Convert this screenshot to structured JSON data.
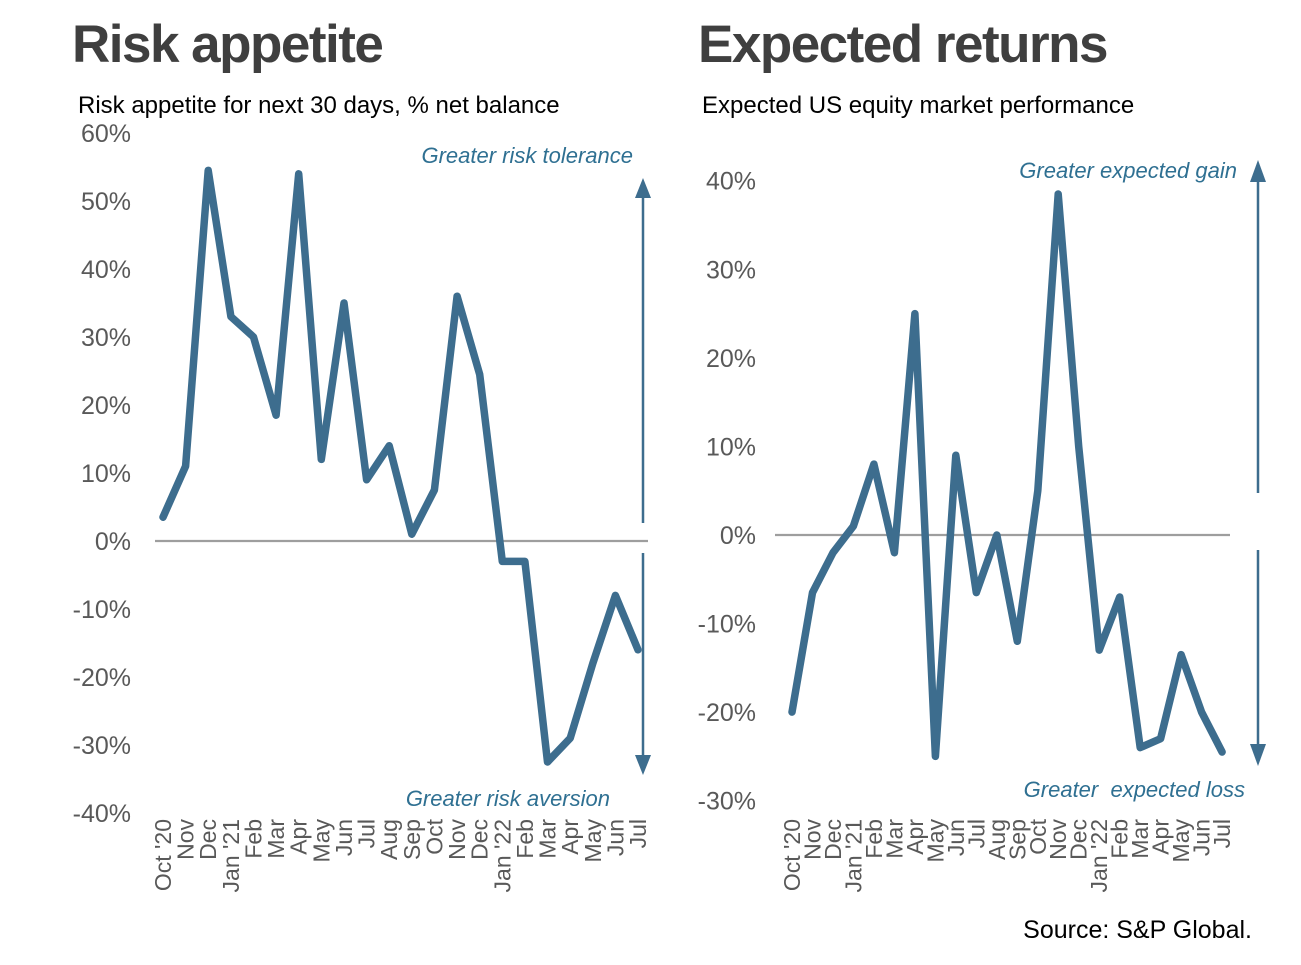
{
  "page": {
    "source_note": "Source: S&P Global.",
    "background": "#ffffff"
  },
  "colors": {
    "line": "#3d6d8e",
    "arrow": "#3d6d8e",
    "annotation_text": "#2f7092",
    "axis_line": "#9e9e9e",
    "tick_label": "#595959",
    "title": "#3f3f3f",
    "subtitle": "#000000",
    "source": "#000000"
  },
  "chart_data": [
    {
      "type": "line",
      "title": "Risk appetite",
      "subtitle": "Risk appetite for next 30 days, % net balance",
      "unit": "%",
      "xlabel": "",
      "ylabel": "",
      "grid": false,
      "legend": false,
      "ylim": [
        -40,
        60
      ],
      "ytick_step": 10,
      "categories": [
        "Oct '20",
        "Nov",
        "Dec",
        "Jan '21",
        "Feb",
        "Mar",
        "Apr",
        "May",
        "Jun",
        "Jul",
        "Aug",
        "Sep",
        "Oct",
        "Nov",
        "Dec",
        "Jan '22",
        "Feb",
        "Mar",
        "Apr",
        "May",
        "Jun",
        "Jul"
      ],
      "values": [
        3.5,
        11,
        54.5,
        33,
        30,
        18.5,
        54,
        12,
        35,
        9,
        14,
        1,
        7.5,
        36,
        24.5,
        -3,
        -3,
        -32.5,
        -29,
        -18,
        -8,
        -16
      ],
      "annotation_top": "Greater risk tolerance",
      "annotation_bottom": "Greater risk aversion"
    },
    {
      "type": "line",
      "title": "Expected returns",
      "subtitle": "Expected US equity market performance",
      "unit": "%",
      "xlabel": "",
      "ylabel": "",
      "grid": false,
      "legend": false,
      "ylim": [
        -30,
        40
      ],
      "ytick_step": 10,
      "categories": [
        "Oct '20",
        "Nov",
        "Dec",
        "Jan '21",
        "Feb",
        "Mar",
        "Apr",
        "May",
        "Jun",
        "Jul",
        "Aug",
        "Sep",
        "Oct",
        "Nov",
        "Dec",
        "Jan '22",
        "Feb",
        "Mar",
        "Apr",
        "May",
        "Jun",
        "Jul"
      ],
      "values": [
        -20,
        -6.5,
        -2,
        1,
        8,
        -2,
        25,
        -25,
        9,
        -6.5,
        0,
        -12,
        5,
        38.5,
        10,
        -13,
        -7,
        -24,
        -23,
        -13.5,
        -20,
        -24.5
      ],
      "annotation_top": "Greater expected gain",
      "annotation_bottom": "Greater  expected loss"
    }
  ]
}
